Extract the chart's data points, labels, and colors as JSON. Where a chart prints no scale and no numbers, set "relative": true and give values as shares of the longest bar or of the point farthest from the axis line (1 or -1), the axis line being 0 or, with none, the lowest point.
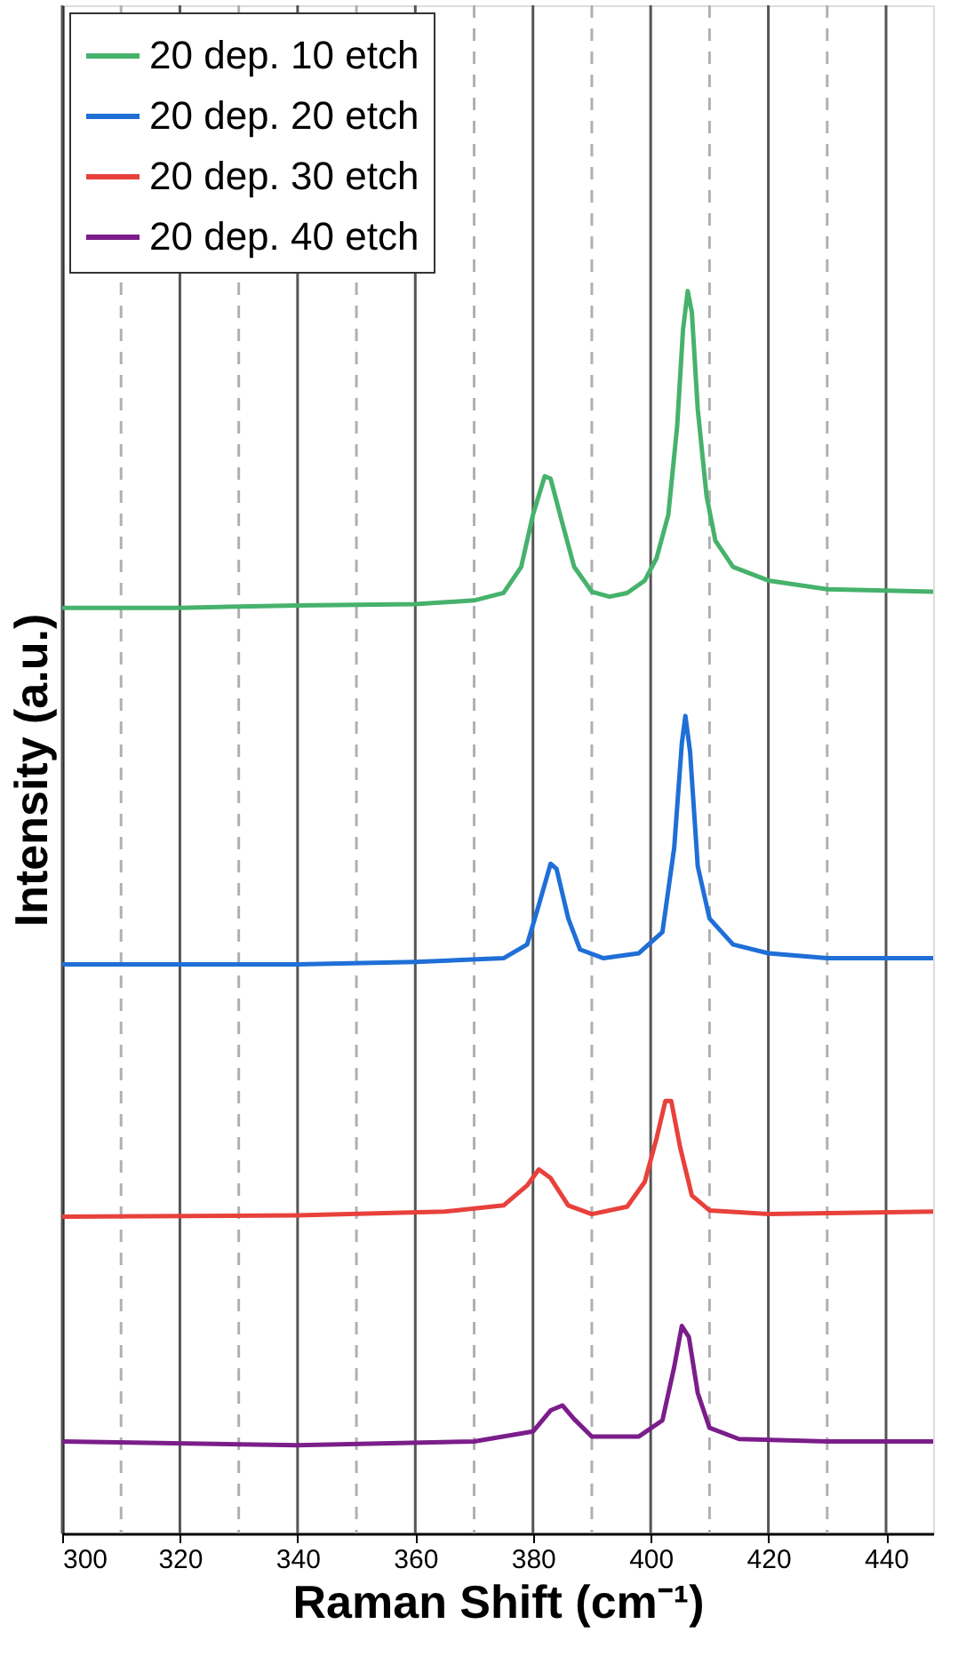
{
  "chart_data": {
    "type": "line",
    "xlabel": "Raman Shift (cm⁻¹)",
    "ylabel": "Intensity (a.u.)",
    "relative": true,
    "grid": "x",
    "legend": "top left",
    "line_style": "solid",
    "marker": "none",
    "xlim": [
      300,
      448
    ],
    "xticks": [
      300,
      {
        "value": 310,
        "label": null
      },
      320,
      {
        "value": 330,
        "label": null
      },
      340,
      {
        "value": 350,
        "label": null
      },
      360,
      {
        "value": 370,
        "label": null
      },
      380,
      {
        "value": 390,
        "label": null
      },
      400,
      {
        "value": 410,
        "label": null
      },
      420,
      {
        "value": 430,
        "label": null
      },
      440
    ],
    "series": [
      {
        "name": "20 dep. 10 etch",
        "color": "#46b26c",
        "x": [
          300,
          320,
          340,
          360,
          370,
          375,
          378,
          380,
          382,
          383,
          385,
          387,
          390,
          393,
          396,
          399,
          401,
          403,
          404.5,
          405.5,
          406.3,
          407,
          408,
          409.5,
          411,
          414,
          420,
          430,
          448
        ],
        "values": [
          0.745,
          0.745,
          0.747,
          0.748,
          0.751,
          0.757,
          0.778,
          0.82,
          0.851,
          0.849,
          0.813,
          0.778,
          0.758,
          0.754,
          0.757,
          0.767,
          0.785,
          0.82,
          0.891,
          0.969,
          1.0,
          0.983,
          0.905,
          0.835,
          0.799,
          0.778,
          0.767,
          0.76,
          0.758
        ]
      },
      {
        "name": "20 dep. 20 etch",
        "color": "#1f6fd6",
        "x": [
          300,
          340,
          360,
          375,
          379,
          381,
          383,
          384,
          386,
          388,
          392,
          398,
          402,
          404,
          405.3,
          405.9,
          406.7,
          408,
          410,
          414,
          420,
          430,
          448
        ],
        "values": [
          0.458,
          0.458,
          0.46,
          0.463,
          0.474,
          0.506,
          0.539,
          0.535,
          0.495,
          0.47,
          0.463,
          0.467,
          0.484,
          0.552,
          0.636,
          0.658,
          0.629,
          0.537,
          0.495,
          0.474,
          0.467,
          0.463,
          0.463
        ]
      },
      {
        "name": "20 dep. 30 etch",
        "color": "#e8413c",
        "x": [
          300,
          340,
          365,
          375,
          379,
          381,
          383,
          386,
          390,
          396,
          399,
          401,
          402.5,
          403.5,
          405,
          407,
          410,
          420,
          448
        ],
        "values": [
          0.255,
          0.256,
          0.259,
          0.264,
          0.28,
          0.293,
          0.286,
          0.264,
          0.257,
          0.263,
          0.283,
          0.318,
          0.348,
          0.348,
          0.311,
          0.272,
          0.26,
          0.257,
          0.259
        ]
      },
      {
        "name": "20 dep. 40 etch",
        "color": "#7b1d8a",
        "x": [
          300,
          340,
          370,
          380,
          383,
          385,
          387,
          390,
          398,
          402,
          404,
          405.3,
          406.5,
          408,
          410,
          415,
          430,
          448
        ],
        "values": [
          0.074,
          0.071,
          0.074,
          0.082,
          0.099,
          0.103,
          0.092,
          0.078,
          0.078,
          0.091,
          0.134,
          0.167,
          0.158,
          0.113,
          0.085,
          0.076,
          0.074,
          0.074
        ]
      }
    ]
  }
}
